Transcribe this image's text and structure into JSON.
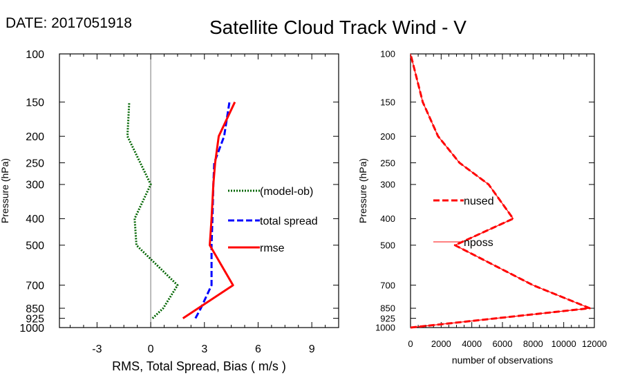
{
  "header": {
    "date_label": "DATE: 2017051918",
    "title": "Satellite Cloud Track Wind - V"
  },
  "chart_data": [
    {
      "type": "line",
      "ylabel": "Pressure (hPa)",
      "xlabel": "RMS, Total Spread, Bias ( m/s )",
      "xlim": [
        -5.1,
        10.5
      ],
      "ylim": [
        1000,
        100
      ],
      "yscale": "log",
      "x_ticks": [
        -3,
        0,
        3,
        6,
        9
      ],
      "x_tick_labels": [
        "-3",
        "0",
        "3",
        "6",
        "9"
      ],
      "y_ticks": [
        100,
        150,
        200,
        250,
        300,
        400,
        500,
        700,
        850,
        925,
        1000
      ],
      "y_tick_labels": [
        "100",
        "150",
        "200",
        "250",
        "300",
        "400",
        "500",
        "700",
        "850",
        "925",
        "1000"
      ],
      "zero_line": true,
      "grid": false,
      "legend_position": "right-middle",
      "series": [
        {
          "name": "(model-ob)",
          "color": "#006400",
          "style": "dotted",
          "x": [
            0.1,
            0.7,
            1.5,
            -0.8,
            -0.9,
            0.0,
            -1.3,
            -1.2
          ],
          "y": [
            925,
            850,
            700,
            500,
            400,
            300,
            200,
            150
          ]
        },
        {
          "name": "total spread",
          "color": "#0000ff",
          "style": "dashed",
          "x": [
            2.5,
            2.8,
            3.4,
            3.4,
            3.45,
            3.5,
            3.55,
            4.1,
            4.4
          ],
          "y": [
            925,
            850,
            700,
            500,
            400,
            300,
            250,
            200,
            150
          ]
        },
        {
          "name": "rmse",
          "color": "#ff0000",
          "style": "solid",
          "x": [
            1.8,
            4.6,
            3.3,
            3.4,
            3.5,
            3.6,
            3.8,
            4.7
          ],
          "y": [
            925,
            700,
            500,
            400,
            300,
            250,
            200,
            150
          ]
        }
      ]
    },
    {
      "type": "line",
      "ylabel": "Pressure (hPa)",
      "xlabel": "number of observations",
      "xlim": [
        0,
        12000
      ],
      "ylim": [
        1000,
        100
      ],
      "yscale": "log",
      "x_ticks": [
        0,
        2000,
        4000,
        6000,
        8000,
        10000,
        12000
      ],
      "x_tick_labels": [
        "0",
        "2000",
        "4000",
        "6000",
        "8000",
        "10000",
        "12000"
      ],
      "y_ticks": [
        100,
        150,
        200,
        250,
        300,
        400,
        500,
        700,
        850,
        925,
        1000
      ],
      "y_tick_labels": [
        "100",
        "150",
        "200",
        "250",
        "300",
        "400",
        "500",
        "700",
        "850",
        "925",
        "1000"
      ],
      "grid": false,
      "legend_position": "left-middle",
      "series": [
        {
          "name": "nused",
          "color": "#ff0000",
          "style": "dashed",
          "x": [
            0,
            11700,
            8000,
            2900,
            6700,
            5100,
            3200,
            1800,
            800,
            0
          ],
          "y": [
            1000,
            850,
            700,
            500,
            400,
            300,
            250,
            200,
            150,
            100
          ]
        },
        {
          "name": "nposs",
          "color": "#ff0000",
          "style": "solid",
          "x": [
            0,
            11700,
            8000,
            2900,
            6700,
            5100,
            3200,
            1800,
            800,
            0
          ],
          "y": [
            1000,
            850,
            700,
            500,
            400,
            300,
            250,
            200,
            150,
            100
          ]
        }
      ]
    }
  ]
}
